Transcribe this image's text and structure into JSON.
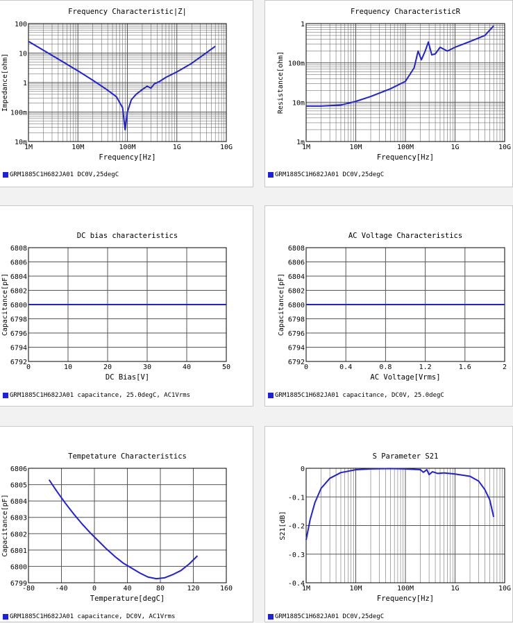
{
  "colors": {
    "series": "#1f1fe0",
    "grid": "#555555",
    "swatch": "#1f1fe0"
  },
  "chart_data": [
    {
      "type": "line",
      "title": "Frequency  Characteristic|Z|",
      "xlabel": "Frequency[Hz]",
      "ylabel": "Impedance[ohm]",
      "xscale": "log",
      "yscale": "log",
      "xlim": [
        1000000,
        10000000000
      ],
      "ylim": [
        0.01,
        100
      ],
      "xticks": [
        1000000,
        10000000,
        100000000,
        1000000000,
        10000000000
      ],
      "xticklabels": [
        "1M",
        "10M",
        "100M",
        "1G",
        "10G"
      ],
      "yticks": [
        0.01,
        0.1,
        1,
        10,
        100
      ],
      "yticklabels": [
        "10m",
        "100m",
        "1",
        "10",
        "100"
      ],
      "grid": true,
      "legend": "GRM1885C1H682JA01 DC0V,25degC",
      "series": [
        {
          "x": [
            1000000,
            2000000,
            5000000,
            10000000,
            20000000,
            40000000,
            60000000,
            80000000,
            90000000,
            100000000,
            120000000,
            150000000,
            200000000,
            250000000,
            300000000,
            350000000,
            450000000,
            600000000,
            1000000000,
            2000000000,
            6000000000
          ],
          "y": [
            25,
            12.5,
            5,
            2.5,
            1.2,
            0.55,
            0.33,
            0.14,
            0.025,
            0.1,
            0.26,
            0.4,
            0.58,
            0.75,
            0.65,
            0.9,
            1.1,
            1.5,
            2.3,
            4.5,
            17
          ]
        }
      ]
    },
    {
      "type": "line",
      "title": "Frequency  CharacteristicR",
      "xlabel": "Frequency[Hz]",
      "ylabel": "Resistance[ohm]",
      "xscale": "log",
      "yscale": "log",
      "xlim": [
        1000000,
        10000000000
      ],
      "ylim": [
        0.001,
        1
      ],
      "xticks": [
        1000000,
        10000000,
        100000000,
        1000000000,
        10000000000
      ],
      "xticklabels": [
        "1M",
        "10M",
        "100M",
        "1G",
        "10G"
      ],
      "yticks": [
        0.001,
        0.01,
        0.1,
        1
      ],
      "yticklabels": [
        "1m",
        "10m",
        "100m",
        "1"
      ],
      "grid": true,
      "legend": "GRM1885C1H682JA01 DC0V,25degC",
      "series": [
        {
          "x": [
            1000000,
            2000000,
            5000000,
            10000000,
            20000000,
            50000000,
            100000000,
            150000000,
            180000000,
            210000000,
            250000000,
            290000000,
            340000000,
            400000000,
            500000000,
            700000000,
            1000000000,
            2000000000,
            4000000000,
            6000000000
          ],
          "y": [
            0.008,
            0.008,
            0.0085,
            0.0105,
            0.014,
            0.022,
            0.034,
            0.075,
            0.2,
            0.12,
            0.2,
            0.34,
            0.16,
            0.17,
            0.25,
            0.2,
            0.25,
            0.35,
            0.5,
            0.88
          ]
        }
      ]
    },
    {
      "type": "line",
      "title": "DC bias characteristics",
      "xlabel": "DC Bias[V]",
      "ylabel": "Capacitance[pF]",
      "xlim": [
        0,
        50
      ],
      "ylim": [
        6792,
        6808
      ],
      "xticks": [
        0,
        10,
        20,
        30,
        40,
        50
      ],
      "xticklabels": [
        "0",
        "10",
        "20",
        "30",
        "40",
        "50"
      ],
      "yticks": [
        6792,
        6794,
        6796,
        6798,
        6800,
        6802,
        6804,
        6806,
        6808
      ],
      "yticklabels": [
        "6792",
        "6794",
        "6796",
        "6798",
        "6800",
        "6802",
        "6804",
        "6806",
        "6808"
      ],
      "grid": true,
      "legend": "GRM1885C1H682JA01 capacitance, 25.0degC, AC1Vrms",
      "series": [
        {
          "x": [
            0,
            50
          ],
          "y": [
            6800,
            6800
          ]
        }
      ]
    },
    {
      "type": "line",
      "title": "AC Voltage Characteristics",
      "xlabel": "AC Voltage[Vrms]",
      "ylabel": "Capacitance[pF]",
      "xlim": [
        0,
        2
      ],
      "ylim": [
        6792,
        6808
      ],
      "xticks": [
        0,
        0.4,
        0.8,
        1.2,
        1.6,
        2
      ],
      "xticklabels": [
        "0",
        "0.4",
        "0.8",
        "1.2",
        "1.6",
        "2"
      ],
      "yticks": [
        6792,
        6794,
        6796,
        6798,
        6800,
        6802,
        6804,
        6806,
        6808
      ],
      "yticklabels": [
        "6792",
        "6794",
        "6796",
        "6798",
        "6800",
        "6802",
        "6804",
        "6806",
        "6808"
      ],
      "grid": true,
      "legend": "GRM1885C1H682JA01 capacitance, DC0V, 25.0degC",
      "series": [
        {
          "x": [
            0,
            2
          ],
          "y": [
            6800,
            6800
          ]
        }
      ]
    },
    {
      "type": "line",
      "title": "Tempetature  Characteristics",
      "xlabel": "Temperature[degC]",
      "ylabel": "Capacitance[pF]",
      "xlim": [
        -80,
        160
      ],
      "ylim": [
        6799,
        6806
      ],
      "xticks": [
        -80,
        -40,
        0,
        40,
        80,
        120,
        160
      ],
      "xticklabels": [
        "-80",
        "-40",
        "0",
        "40",
        "80",
        "120",
        "160"
      ],
      "yticks": [
        6799,
        6800,
        6801,
        6802,
        6803,
        6804,
        6805,
        6806
      ],
      "yticklabels": [
        "6799",
        "6800",
        "6801",
        "6802",
        "6803",
        "6804",
        "6805",
        "6806"
      ],
      "grid": true,
      "legend": "GRM1885C1H682JA01 capacitance, DC0V, AC1Vrms",
      "series": [
        {
          "x": [
            -55,
            -45,
            -35,
            -25,
            -15,
            -5,
            5,
            15,
            25,
            35,
            45,
            55,
            65,
            75,
            85,
            95,
            105,
            115,
            125
          ],
          "y": [
            6805.3,
            6804.55,
            6803.85,
            6803.2,
            6802.6,
            6802.05,
            6801.55,
            6801.05,
            6800.6,
            6800.2,
            6799.9,
            6799.6,
            6799.35,
            6799.25,
            6799.3,
            6799.5,
            6799.75,
            6800.15,
            6800.65
          ]
        }
      ]
    },
    {
      "type": "line",
      "title": "S Parameter S21",
      "xlabel": "Frequency[Hz]",
      "ylabel": "S21[dB]",
      "xscale": "log",
      "xlim": [
        1000000,
        10000000000
      ],
      "ylim": [
        -0.4,
        0
      ],
      "xticks": [
        1000000,
        10000000,
        100000000,
        1000000000,
        10000000000
      ],
      "xticklabels": [
        "1M",
        "10M",
        "100M",
        "1G",
        "10G"
      ],
      "yticks": [
        -0.4,
        -0.3,
        -0.2,
        -0.1,
        0
      ],
      "yticklabels": [
        "-0.4",
        "-0.3",
        "-0.2",
        "-0.1",
        "0"
      ],
      "grid": true,
      "legend": "GRM1885C1H682JA01 DC0V,25degC",
      "series": [
        {
          "x": [
            1000000,
            1200000,
            1500000,
            2000000,
            3000000,
            5000000,
            10000000,
            20000000,
            50000000,
            100000000,
            200000000,
            230000000,
            270000000,
            300000000,
            350000000,
            450000000,
            600000000,
            1000000000,
            2000000000,
            3000000000,
            4000000000,
            5000000000,
            6000000000
          ],
          "y": [
            -0.25,
            -0.18,
            -0.12,
            -0.07,
            -0.035,
            -0.015,
            -0.005,
            -0.002,
            -0.001,
            -0.002,
            -0.005,
            -0.014,
            -0.005,
            -0.022,
            -0.012,
            -0.018,
            -0.016,
            -0.02,
            -0.028,
            -0.045,
            -0.075,
            -0.11,
            -0.17
          ]
        }
      ]
    }
  ]
}
